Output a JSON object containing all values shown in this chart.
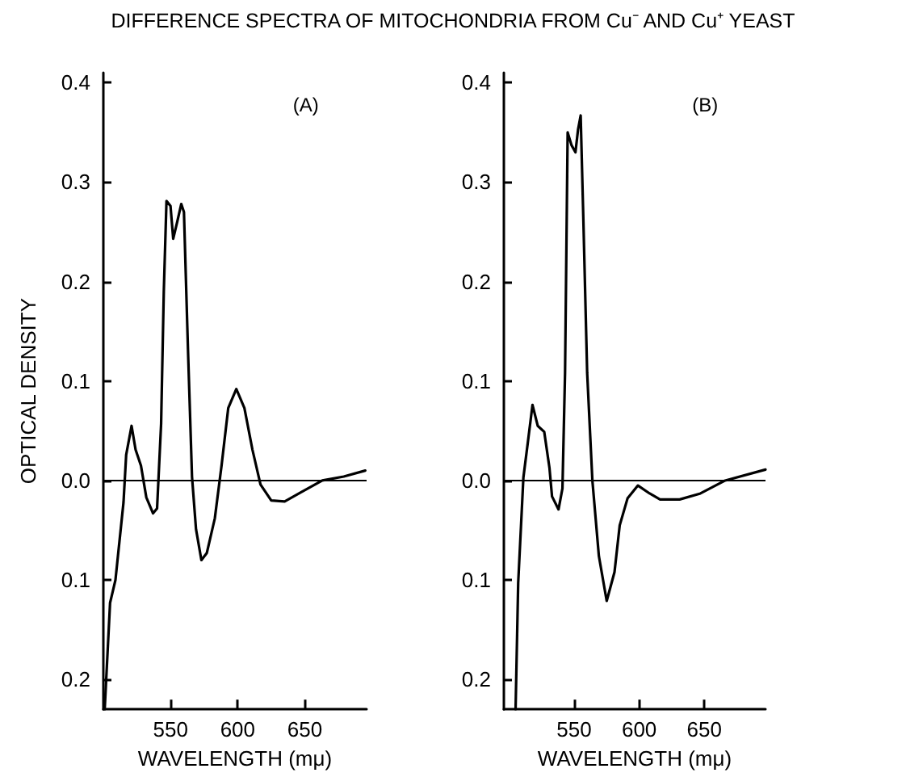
{
  "chart_data": [
    {
      "type": "line",
      "title": "DIFFERENCE SPECTRA OF MITOCHONDRIA FROM Cu⁻ AND Cu⁺ YEAST",
      "xlabel": "WAVELENGTH (mμ)",
      "ylabel": "OPTICAL DENSITY",
      "annotations": [
        "(A)"
      ],
      "marker": "none",
      "xlim": [
        500,
        696
      ],
      "xticks": [
        550,
        600,
        650
      ],
      "ylim": [
        -0.23,
        0.41
      ],
      "yticks": [
        0.4,
        0.3,
        0.2,
        0.1,
        {
          "value": 0,
          "label": "0.0"
        },
        {
          "value": -0.1,
          "label": "0.1"
        },
        {
          "value": -0.2,
          "label": "0.2"
        }
      ],
      "ref_lines": [
        {
          "axis": "y",
          "value": 0,
          "color": "#000000"
        }
      ],
      "series": [
        {
          "color": "#000000",
          "x": [
            501,
            505,
            509,
            515,
            517,
            521,
            524,
            528,
            532,
            537,
            540,
            543,
            545,
            547,
            550,
            552,
            555,
            558,
            560,
            563,
            566,
            569,
            573,
            577,
            583,
            588,
            593,
            599,
            605,
            611,
            617,
            625,
            635,
            647,
            663,
            679,
            695
          ],
          "values": [
            -0.23,
            -0.123,
            -0.1,
            -0.022,
            0.026,
            0.055,
            0.031,
            0.015,
            -0.017,
            -0.033,
            -0.028,
            0.057,
            0.19,
            0.281,
            0.276,
            0.243,
            0.26,
            0.278,
            0.27,
            0.132,
            0.004,
            -0.049,
            -0.08,
            -0.073,
            -0.038,
            0.015,
            0.073,
            0.092,
            0.073,
            0.031,
            -0.004,
            -0.02,
            -0.021,
            -0.012,
            0,
            0.004,
            0.01
          ]
        }
      ]
    },
    {
      "type": "line",
      "xlabel": "WAVELENGTH (mμ)",
      "annotations": [
        "(B)"
      ],
      "marker": "none",
      "xlim": [
        496,
        697
      ],
      "xticks": [
        550,
        600,
        650
      ],
      "ylim": [
        -0.23,
        0.41
      ],
      "yticks": [
        0.4,
        0.3,
        0.2,
        0.1,
        {
          "value": 0,
          "label": "0.0"
        },
        {
          "value": -0.1,
          "label": "0.1"
        },
        {
          "value": -0.2,
          "label": "0.2"
        }
      ],
      "ref_lines": [
        {
          "axis": "y",
          "value": 0,
          "color": "#000000"
        }
      ],
      "series": [
        {
          "color": "#000000",
          "x": [
            505,
            507,
            511,
            514,
            518,
            522,
            527,
            531,
            533,
            538,
            541,
            543,
            545,
            548,
            551,
            553,
            555,
            557,
            560,
            564,
            569,
            575,
            581,
            585,
            591,
            599,
            608,
            616,
            631,
            647,
            666,
            697
          ],
          "values": [
            -0.23,
            -0.103,
            0.003,
            0.034,
            0.076,
            0.055,
            0.049,
            0.013,
            -0.016,
            -0.029,
            -0.008,
            0.108,
            0.35,
            0.337,
            0.33,
            0.353,
            0.367,
            0.266,
            0.108,
            0,
            -0.076,
            -0.121,
            -0.092,
            -0.045,
            -0.018,
            -0.005,
            -0.013,
            -0.019,
            -0.019,
            -0.013,
            0,
            0.011
          ]
        }
      ]
    }
  ]
}
